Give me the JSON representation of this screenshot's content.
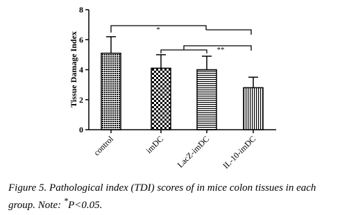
{
  "chart_data": {
    "type": "bar",
    "y_label": "Tissue Damage Index",
    "categories": [
      "control",
      "imDC",
      "LacZ-imDC",
      "IL-10-imDC"
    ],
    "values": [
      5.1,
      4.1,
      4.0,
      2.8
    ],
    "errors": [
      1.1,
      0.9,
      0.9,
      0.7
    ],
    "patterns": [
      "dots",
      "checker",
      "horizontal",
      "vertical"
    ],
    "color": "#000000",
    "ylim": [
      0,
      8
    ],
    "yticks": [
      0,
      2,
      4,
      6,
      8
    ],
    "annotations": [
      "*",
      "**"
    ]
  },
  "caption": {
    "label": "Figure 5.",
    "text": "Pathological index (TDI) scores of in mice colon tissues in each group. Note: ",
    "superscript": "*",
    "end": "P<0.05."
  }
}
